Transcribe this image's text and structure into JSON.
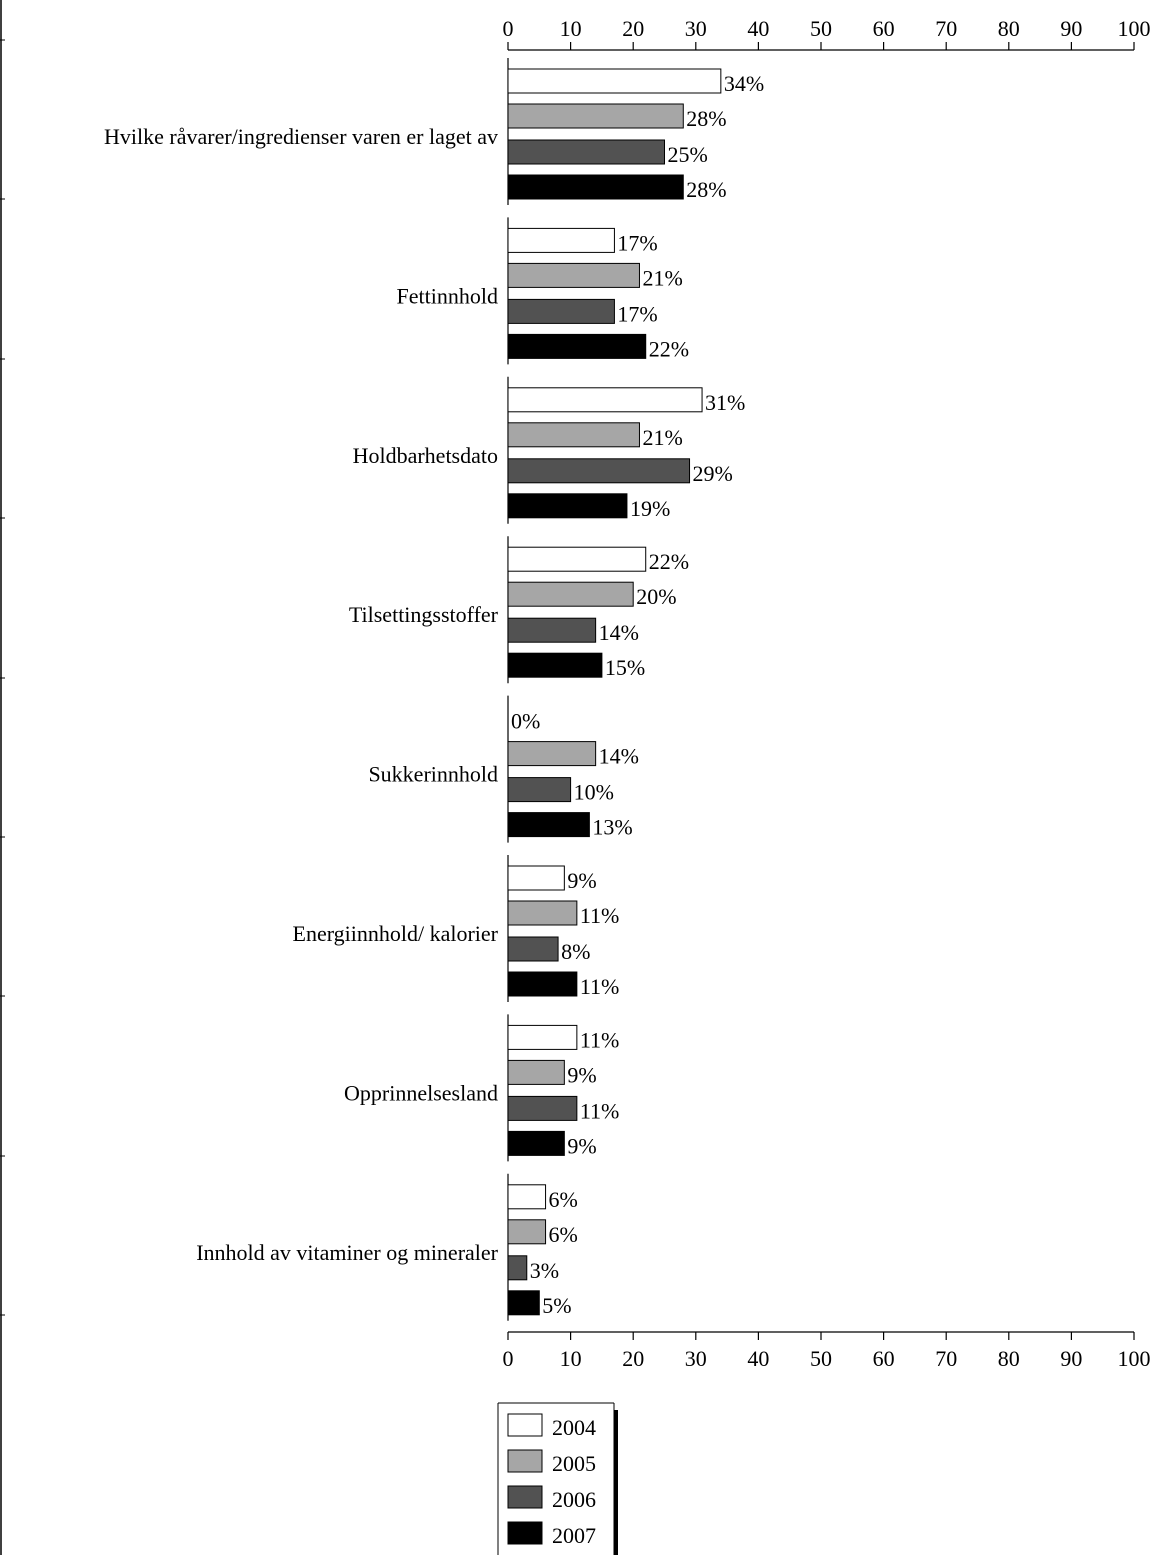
{
  "chart_data": {
    "type": "bar",
    "orientation": "horizontal",
    "title": "",
    "xlabel": "",
    "ylabel": "",
    "xlim": [
      0,
      100
    ],
    "ticks": [
      0,
      10,
      20,
      30,
      40,
      50,
      60,
      70,
      80,
      90,
      100
    ],
    "tick_labels": [
      "0",
      "10",
      "20",
      "30",
      "40",
      "50",
      "60",
      "70",
      "80",
      "90",
      "100"
    ],
    "grid": false,
    "legend_position": "bottom",
    "value_suffix": "%",
    "categories": [
      "Hvilke råvarer/ingredienser varen er laget av",
      "Fettinnhold",
      "Holdbarhetsdato",
      "Tilsettingsstoffer",
      "Sukkerinnhold",
      "Energiinnhold/ kalorier",
      "Opprinnelsesland",
      "Innhold av vitaminer og mineraler"
    ],
    "series": [
      {
        "name": "2004",
        "color": "#ffffff",
        "values": [
          34,
          17,
          31,
          22,
          0,
          9,
          11,
          6
        ],
        "labels": [
          "34%",
          "17%",
          "31%",
          "22%",
          "0%",
          "9%",
          "11%",
          "6%"
        ]
      },
      {
        "name": "2005",
        "color": "#a6a6a6",
        "values": [
          28,
          21,
          21,
          20,
          14,
          11,
          9,
          6
        ],
        "labels": [
          "28%",
          "21%",
          "21%",
          "20%",
          "14%",
          "11%",
          "9%",
          "6%"
        ]
      },
      {
        "name": "2006",
        "color": "#525252",
        "values": [
          25,
          17,
          29,
          14,
          10,
          8,
          11,
          3
        ],
        "labels": [
          "25%",
          "17%",
          "29%",
          "14%",
          "10%",
          "8%",
          "11%",
          "3%"
        ]
      },
      {
        "name": "2007",
        "color": "#000000",
        "values": [
          28,
          22,
          19,
          15,
          13,
          11,
          9,
          5
        ],
        "labels": [
          "28%",
          "22%",
          "19%",
          "15%",
          "13%",
          "11%",
          "9%",
          "5%"
        ]
      }
    ]
  }
}
